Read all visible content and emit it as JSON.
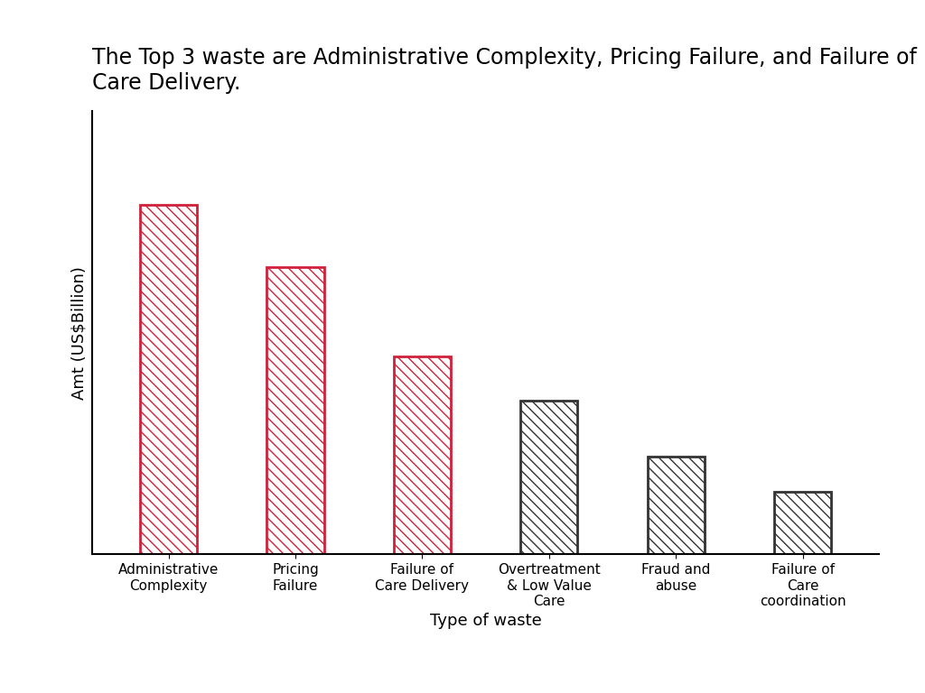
{
  "chart_data": {
    "type": "bar",
    "title": "The Top 3 waste are Administrative Complexity, Pricing Failure, and Failure of Care Delivery.",
    "y_label": "Amt (US$Billion)",
    "x_label": "Type of waste",
    "categories": [
      "Administrative Complexity",
      "Pricing Failure",
      "Failure of Care Delivery",
      "Overtreatment & Low Value Care",
      "Fraud and abuse",
      "Failure of Care coordination"
    ],
    "values": [
      268,
      220,
      152,
      118,
      75,
      48
    ],
    "colors": [
      "#d0213a",
      "#d0213a",
      "#d0213a",
      "#333333",
      "#333333",
      "#333333"
    ],
    "ylim": [
      0,
      340
    ],
    "tick_labels": "x",
    "grid": false
  }
}
